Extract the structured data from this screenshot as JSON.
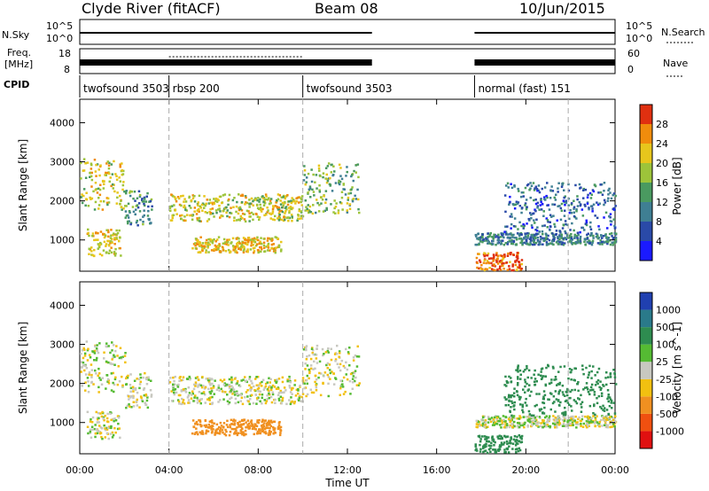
{
  "header": {
    "station": "Clyde River (fitACF)",
    "beam": "Beam 08",
    "date": "10/Jun/2015"
  },
  "side_labels": {
    "nsky": "N.Sky",
    "freq_line1": "Freq.",
    "freq_line2": "[MHz]",
    "cpid": "CPID",
    "nsearch": "N.Search",
    "nave": "Nave"
  },
  "summary_ticks": {
    "nsky_top": "10^5",
    "nsky_bottom": "10^0",
    "freq_top": "18",
    "freq_bottom": "8",
    "nave_top": "60",
    "nave_bottom": "0"
  },
  "cpid_segments": [
    {
      "label": "twofsound 3503",
      "start_h": 0.0
    },
    {
      "label": "rbsp 200",
      "start_h": 4.0
    },
    {
      "label": "twofsound 3503",
      "start_h": 10.0
    },
    {
      "label": "normal (fast) 151",
      "start_h": 17.7
    }
  ],
  "axes": {
    "xlabel": "Time UT",
    "x_ticks": [
      "00:00",
      "04:00",
      "08:00",
      "12:00",
      "16:00",
      "20:00",
      "00:00"
    ],
    "x_tick_hours": [
      0,
      4,
      8,
      12,
      16,
      20,
      24
    ],
    "ylabel": "Slant Range [km]",
    "y_ticks": [
      1000,
      2000,
      3000,
      4000
    ],
    "ylim": [
      200,
      4600
    ],
    "xlim": [
      0,
      24
    ]
  },
  "colorbars": {
    "power": {
      "label": "Power [dB]",
      "ticks": [
        "4",
        "8",
        "12",
        "16",
        "20",
        "24",
        "28"
      ],
      "colors": [
        "#1a1aff",
        "#2a4aa8",
        "#3f7f93",
        "#4a9a60",
        "#9dc43a",
        "#e7c61c",
        "#f08c0c",
        "#e03010"
      ]
    },
    "velocity": {
      "label": "Velocity [m s^-1]",
      "ticks": [
        "1000",
        "500",
        "100",
        "25",
        "-25",
        "-100",
        "-500",
        "-1000"
      ],
      "colors": [
        "#2040b0",
        "#2a7a8a",
        "#2e8c50",
        "#55bb33",
        "#c8c8c0",
        "#f2c010",
        "#f09020",
        "#f05010",
        "#e01010"
      ]
    }
  },
  "chart_data": [
    {
      "type": "heatmap",
      "title": "Power",
      "xlabel": "Time UT",
      "ylabel": "Slant Range [km]",
      "xlim": [
        0,
        24
      ],
      "ylim": [
        200,
        4600
      ],
      "colorbar_label": "Power [dB]",
      "blobs": [
        {
          "t0": 0.0,
          "t1": 2.0,
          "r0": 1800,
          "r1": 3100,
          "dB": 20
        },
        {
          "t0": 0.3,
          "t1": 1.8,
          "r0": 600,
          "r1": 1300,
          "dB": 22
        },
        {
          "t0": 2.0,
          "t1": 3.2,
          "r0": 1400,
          "r1": 2300,
          "dB": 12
        },
        {
          "t0": 4.0,
          "t1": 10.0,
          "r0": 1500,
          "r1": 2200,
          "dB": 20
        },
        {
          "t0": 5.0,
          "t1": 9.0,
          "r0": 700,
          "r1": 1100,
          "dB": 22
        },
        {
          "t0": 10.0,
          "t1": 12.5,
          "r0": 1700,
          "r1": 3000,
          "dB": 16
        },
        {
          "t0": 17.7,
          "t1": 19.8,
          "r0": 250,
          "r1": 700,
          "dB": 28
        },
        {
          "t0": 17.7,
          "t1": 24.0,
          "r0": 900,
          "r1": 1200,
          "dB": 10
        },
        {
          "t0": 19.0,
          "t1": 24.0,
          "r0": 1200,
          "r1": 2500,
          "dB": 8
        }
      ]
    },
    {
      "type": "heatmap",
      "title": "Velocity",
      "xlabel": "Time UT",
      "ylabel": "Slant Range [km]",
      "xlim": [
        0,
        24
      ],
      "ylim": [
        200,
        4600
      ],
      "colorbar_label": "Velocity [m s^-1]",
      "blobs": [
        {
          "t0": 0.0,
          "t1": 2.0,
          "r0": 1800,
          "r1": 3100,
          "vel": 0
        },
        {
          "t0": 0.3,
          "t1": 1.8,
          "r0": 600,
          "r1": 1300,
          "vel": 0
        },
        {
          "t0": 2.0,
          "t1": 3.2,
          "r0": 1400,
          "r1": 2300,
          "vel": 0
        },
        {
          "t0": 4.0,
          "t1": 10.0,
          "r0": 1500,
          "r1": 2200,
          "vel": 0
        },
        {
          "t0": 5.0,
          "t1": 9.0,
          "r0": 700,
          "r1": 1100,
          "vel": -300
        },
        {
          "t0": 10.0,
          "t1": 12.5,
          "r0": 1700,
          "r1": 3000,
          "vel": 0
        },
        {
          "t0": 17.7,
          "t1": 19.8,
          "r0": 250,
          "r1": 700,
          "vel": 200
        },
        {
          "t0": 17.7,
          "t1": 24.0,
          "r0": 900,
          "r1": 1200,
          "vel": 0
        },
        {
          "t0": 19.0,
          "t1": 24.0,
          "r0": 1200,
          "r1": 2500,
          "vel": 200
        }
      ]
    }
  ]
}
